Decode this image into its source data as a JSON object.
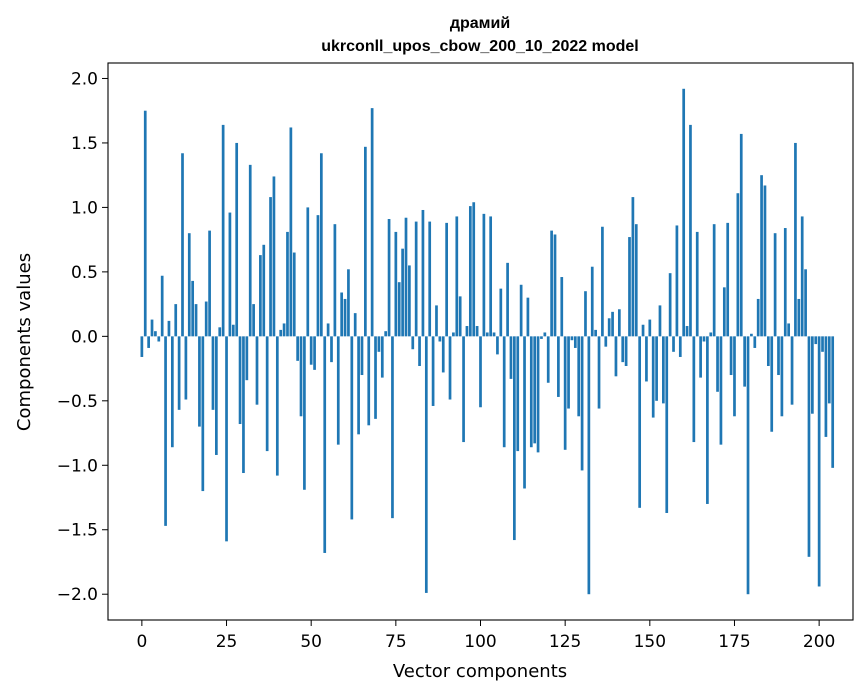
{
  "chart_data": {
    "type": "bar",
    "title": "драмий",
    "subtitle": "ukrconll_upos_cbow_200_10_2022 model",
    "xlabel": "Vector components",
    "ylabel": "Components values",
    "xlim": [
      -10,
      210
    ],
    "ylim": [
      -2.2,
      2.12
    ],
    "xticks": [
      0,
      25,
      50,
      75,
      100,
      125,
      150,
      175,
      200
    ],
    "yticks": [
      2.0,
      1.5,
      1.0,
      0.5,
      0.0,
      -0.5,
      -1.0,
      -1.5,
      -2.0
    ],
    "ytick_labels": [
      "2.0",
      "1.5",
      "1.0",
      "0.5",
      "0.0",
      "−0.5",
      "−1.0",
      "−1.5",
      "−2.0"
    ],
    "grid": false,
    "bar_color": "#1f77b4",
    "values": [
      -0.16,
      1.75,
      -0.09,
      0.13,
      0.04,
      -0.04,
      0.47,
      -1.47,
      0.12,
      -0.86,
      0.25,
      -0.57,
      1.42,
      -0.49,
      0.8,
      0.43,
      0.25,
      -0.7,
      -1.2,
      0.27,
      0.82,
      -0.57,
      -0.92,
      0.07,
      1.64,
      -1.59,
      0.96,
      0.09,
      1.5,
      -0.68,
      -1.06,
      -0.34,
      1.33,
      0.25,
      -0.53,
      0.63,
      0.71,
      -0.89,
      1.08,
      1.24,
      -1.08,
      0.05,
      0.1,
      0.81,
      1.62,
      0.65,
      -0.19,
      -0.62,
      -1.19,
      1.0,
      -0.22,
      -0.26,
      0.94,
      1.42,
      -1.68,
      0.1,
      -0.2,
      0.87,
      -0.84,
      0.34,
      0.29,
      0.52,
      -1.42,
      0.18,
      -0.76,
      -0.3,
      1.47,
      -0.69,
      1.77,
      -0.64,
      -0.12,
      -0.32,
      0.04,
      0.91,
      -1.41,
      0.81,
      0.42,
      0.68,
      0.92,
      0.55,
      -0.1,
      0.89,
      -0.23,
      0.98,
      -1.99,
      0.89,
      -0.54,
      0.24,
      -0.04,
      -0.28,
      0.88,
      -0.49,
      0.03,
      0.93,
      0.31,
      -0.82,
      0.08,
      1.01,
      1.04,
      0.08,
      -0.55,
      0.95,
      0.03,
      0.93,
      0.03,
      -0.14,
      0.37,
      -0.86,
      0.57,
      -0.33,
      -1.58,
      -0.89,
      0.4,
      -1.18,
      0.3,
      -0.86,
      -0.83,
      -0.9,
      -0.02,
      0.03,
      -0.36,
      0.82,
      0.79,
      -0.47,
      0.46,
      -0.88,
      -0.56,
      -0.03,
      -0.09,
      -0.62,
      -1.04,
      0.35,
      -2.0,
      0.54,
      0.05,
      -0.56,
      0.85,
      -0.08,
      0.14,
      0.19,
      -0.31,
      0.21,
      -0.2,
      -0.23,
      0.77,
      1.08,
      0.87,
      -1.33,
      0.09,
      -0.35,
      0.13,
      -0.63,
      -0.5,
      0.24,
      -0.52,
      -1.37,
      0.49,
      -0.12,
      0.86,
      -0.16,
      1.92,
      0.08,
      1.64,
      -0.82,
      0.81,
      -0.32,
      -0.04,
      -1.3,
      0.03,
      0.87,
      -0.43,
      -0.84,
      0.38,
      0.88,
      -0.3,
      -0.62,
      1.11,
      1.57,
      -0.39,
      -2.0,
      0.02,
      -0.09,
      0.29,
      1.25,
      1.17,
      -0.23,
      -0.74,
      0.8,
      -0.3,
      -0.62,
      0.84,
      0.1,
      -0.53,
      1.5,
      0.29,
      0.93,
      0.52,
      -1.71,
      -0.6,
      -0.06,
      -1.94,
      -0.12,
      -0.78,
      -0.52,
      -1.02
    ]
  }
}
